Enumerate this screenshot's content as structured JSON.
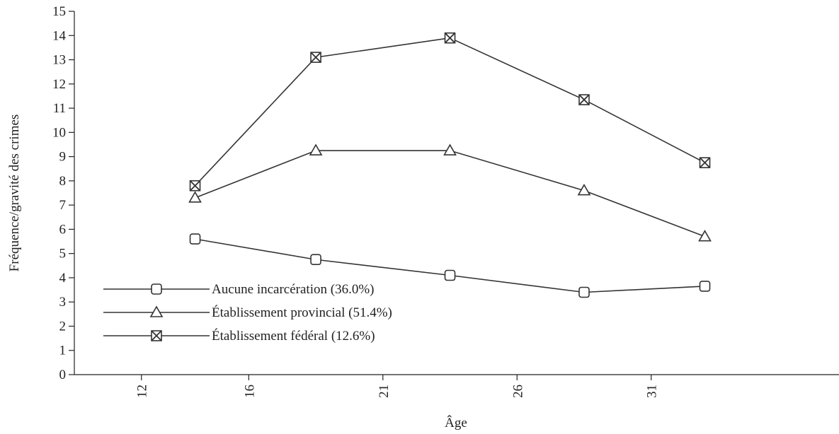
{
  "chart_data": {
    "type": "line",
    "xlabel": "Âge",
    "ylabel": "Fréquence/gravité des crimes",
    "x": [
      14,
      18.5,
      23.5,
      28.5,
      33
    ],
    "x_axis": {
      "range": [
        9.5,
        38
      ],
      "ticks": [
        12,
        16,
        21,
        26,
        31
      ],
      "tick_labels_rotated": true
    },
    "y_axis": {
      "range": [
        0,
        15
      ],
      "ticks": [
        0,
        1,
        2,
        3,
        4,
        5,
        6,
        7,
        8,
        9,
        10,
        11,
        12,
        13,
        14,
        15
      ]
    },
    "grid": false,
    "legend_placement": "lower-left",
    "series": [
      {
        "name": "Aucune incarcération (36.0%)",
        "marker": "square",
        "values": [
          5.6,
          4.75,
          4.1,
          3.4,
          3.65
        ]
      },
      {
        "name": "Établissement provincial (51.4%)",
        "marker": "triangle",
        "values": [
          7.3,
          9.25,
          9.25,
          7.6,
          5.7
        ]
      },
      {
        "name": "Établissement fédéral (12.6%)",
        "marker": "cross",
        "values": [
          7.8,
          13.1,
          13.9,
          11.35,
          8.75
        ]
      }
    ]
  }
}
